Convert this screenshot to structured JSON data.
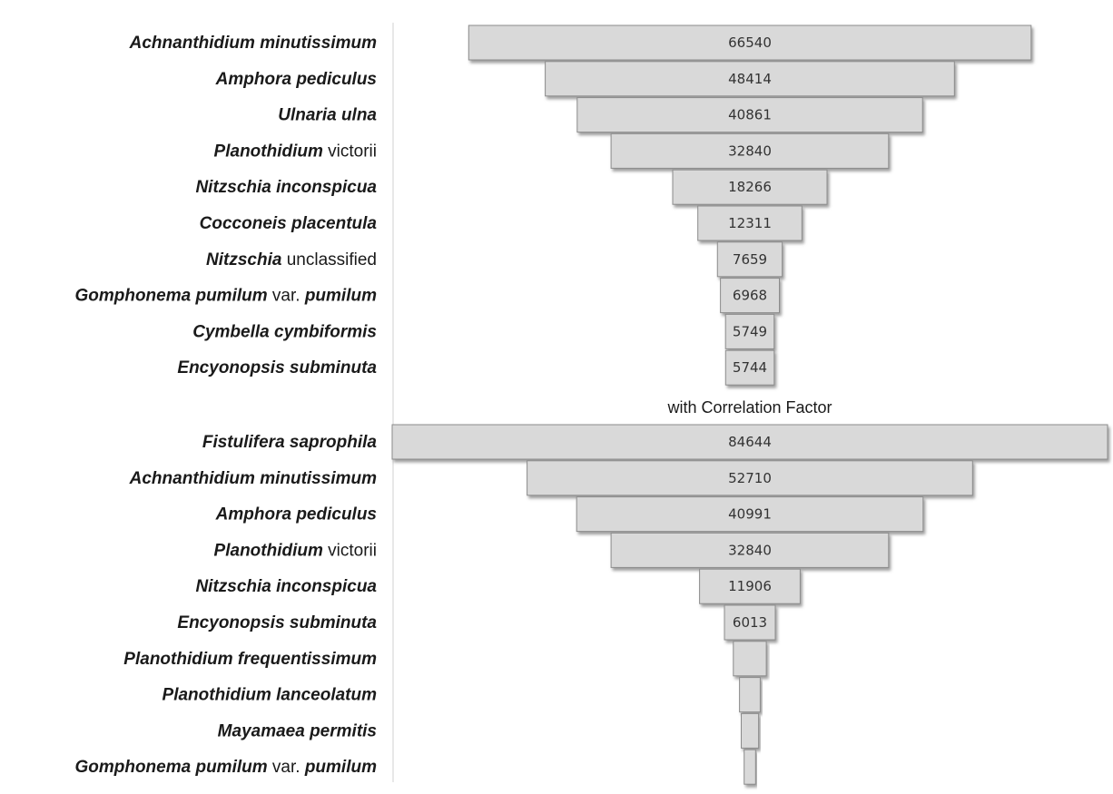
{
  "chart_data": [
    {
      "type": "bar",
      "orientation": "horizontal-funnel",
      "title": "",
      "categories": [
        [
          {
            "t": "Achnanthidium minutissimum",
            "i": true
          }
        ],
        [
          {
            "t": "Amphora pediculus",
            "i": true
          }
        ],
        [
          {
            "t": "Ulnaria ulna",
            "i": true
          }
        ],
        [
          {
            "t": "Planothidium",
            "i": true
          },
          {
            "t": " victorii",
            "i": false
          }
        ],
        [
          {
            "t": "Nitzschia inconspicua",
            "i": true
          }
        ],
        [
          {
            "t": "Cocconeis placentula",
            "i": true
          }
        ],
        [
          {
            "t": "Nitzschia",
            "i": true
          },
          {
            "t": "  unclassified",
            "i": false
          }
        ],
        [
          {
            "t": "Gomphonema pumilum",
            "i": true
          },
          {
            "t": " var. ",
            "i": false
          },
          {
            "t": "pumilum",
            "i": true
          }
        ],
        [
          {
            "t": "Cymbella cymbiformis",
            "i": true
          }
        ],
        [
          {
            "t": "Encyonopsis subminuta",
            "i": true
          }
        ]
      ],
      "values": [
        66540,
        48414,
        40861,
        32840,
        18266,
        12311,
        7659,
        6968,
        5749,
        5744
      ],
      "value_labels": [
        "66540",
        "48414",
        "40861",
        "32840",
        "18266",
        "12311",
        "7659",
        "6968",
        "5749",
        "5744"
      ],
      "bar_color": "#d9d9d9"
    },
    {
      "type": "bar",
      "orientation": "horizontal-funnel",
      "title": "with Correlation Factor",
      "categories": [
        [
          {
            "t": "Fistulifera saprophila",
            "i": true
          }
        ],
        [
          {
            "t": "Achnanthidium minutissimum",
            "i": true
          }
        ],
        [
          {
            "t": "Amphora pediculus",
            "i": true
          }
        ],
        [
          {
            "t": "Planothidium",
            "i": true
          },
          {
            "t": " victorii",
            "i": false
          }
        ],
        [
          {
            "t": "Nitzschia inconspicua",
            "i": true
          }
        ],
        [
          {
            "t": "Encyonopsis subminuta",
            "i": true
          }
        ],
        [
          {
            "t": "Planothidium frequentissimum",
            "i": true
          }
        ],
        [
          {
            "t": "Planothidium lanceolatum",
            "i": true
          }
        ],
        [
          {
            "t": "Mayamaea permitis",
            "i": true
          }
        ],
        [
          {
            "t": "Gomphonema pumilum",
            "i": true
          },
          {
            "t": " var. ",
            "i": false
          },
          {
            "t": "pumilum",
            "i": true
          }
        ]
      ],
      "values": [
        84644,
        52710,
        40991,
        32840,
        11906,
        6013,
        3900,
        2450,
        2050,
        1350
      ],
      "value_labels": [
        "84644",
        "52710",
        "40991",
        "32840",
        "11906",
        "6013",
        "",
        "",
        "",
        ""
      ],
      "bar_color": "#d9d9d9"
    }
  ]
}
